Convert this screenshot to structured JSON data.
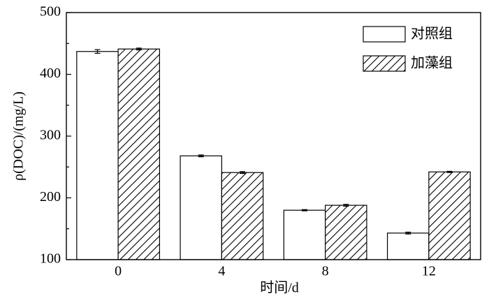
{
  "chart_data": {
    "type": "bar",
    "x_label": "时间/d",
    "y_label": "ρ(DOC)/(mg/L)",
    "categories": [
      "0",
      "4",
      "8",
      "12"
    ],
    "series": [
      {
        "name": "对照组",
        "color": "#ffffff",
        "hatch": false,
        "values": [
          437,
          268,
          180,
          143
        ],
        "errors": [
          3,
          1.5,
          1,
          1.5
        ]
      },
      {
        "name": "加藻组",
        "color": "#ffffff",
        "hatch": true,
        "values": [
          441,
          241,
          188,
          242
        ],
        "errors": [
          1.5,
          1.5,
          1.5,
          1
        ]
      }
    ],
    "ylim": [
      100,
      500
    ],
    "yticks": [
      100,
      200,
      300,
      400,
      500
    ],
    "legend": "upper right"
  }
}
